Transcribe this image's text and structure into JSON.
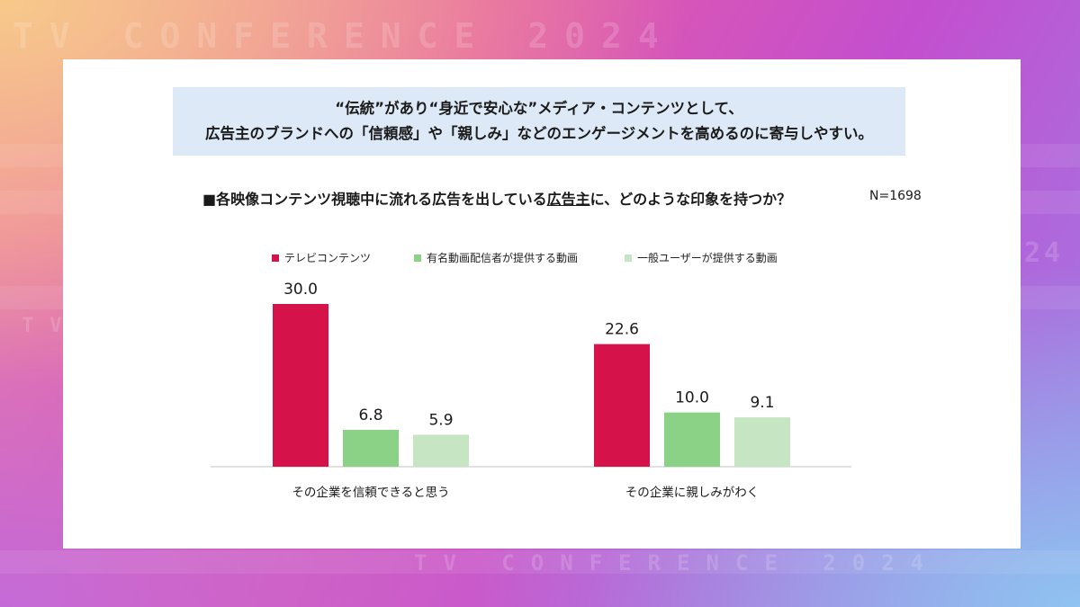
{
  "background": {
    "watermark_top": "TV CONFERENCE 2024",
    "watermark_bottom": "TV CONFERENCE 2024",
    "watermark_left": "TV",
    "watermark_right": "24"
  },
  "headline": {
    "line1": "“伝統”があり“身近で安心な”メディア・コンテンツとして、",
    "line2": "広告主のブランドへの「信頼感」や「親しみ」などのエンゲージメントを高めるのに寄与しやすい。"
  },
  "question": {
    "prefix": "■各映像コンテンツ視聴中に流れる広告を出している",
    "underlined": "広告主",
    "suffix": "に、どのような印象を持つか？"
  },
  "sample_size": "N=1698",
  "chart_data": {
    "type": "bar",
    "categories": [
      "その企業を信頼できると思う",
      "その企業に親しみがわく"
    ],
    "series": [
      {
        "name": "テレビコンテンツ",
        "values": [
          30.0,
          22.6
        ],
        "color": "#d6124a"
      },
      {
        "name": "有名動画配信者が提供する動画",
        "values": [
          6.8,
          10.0
        ],
        "color": "#8bd186"
      },
      {
        "name": "一般ユーザーが提供する動画",
        "values": [
          5.9,
          9.1
        ],
        "color": "#c6e5c3"
      }
    ],
    "value_labels": [
      [
        "30.0",
        "22.6"
      ],
      [
        "6.8",
        "10.0"
      ],
      [
        "5.9",
        "9.1"
      ]
    ],
    "title": "",
    "xlabel": "",
    "ylabel": "",
    "ylim": [
      0,
      30
    ],
    "grid": false,
    "legend_position": "top"
  }
}
